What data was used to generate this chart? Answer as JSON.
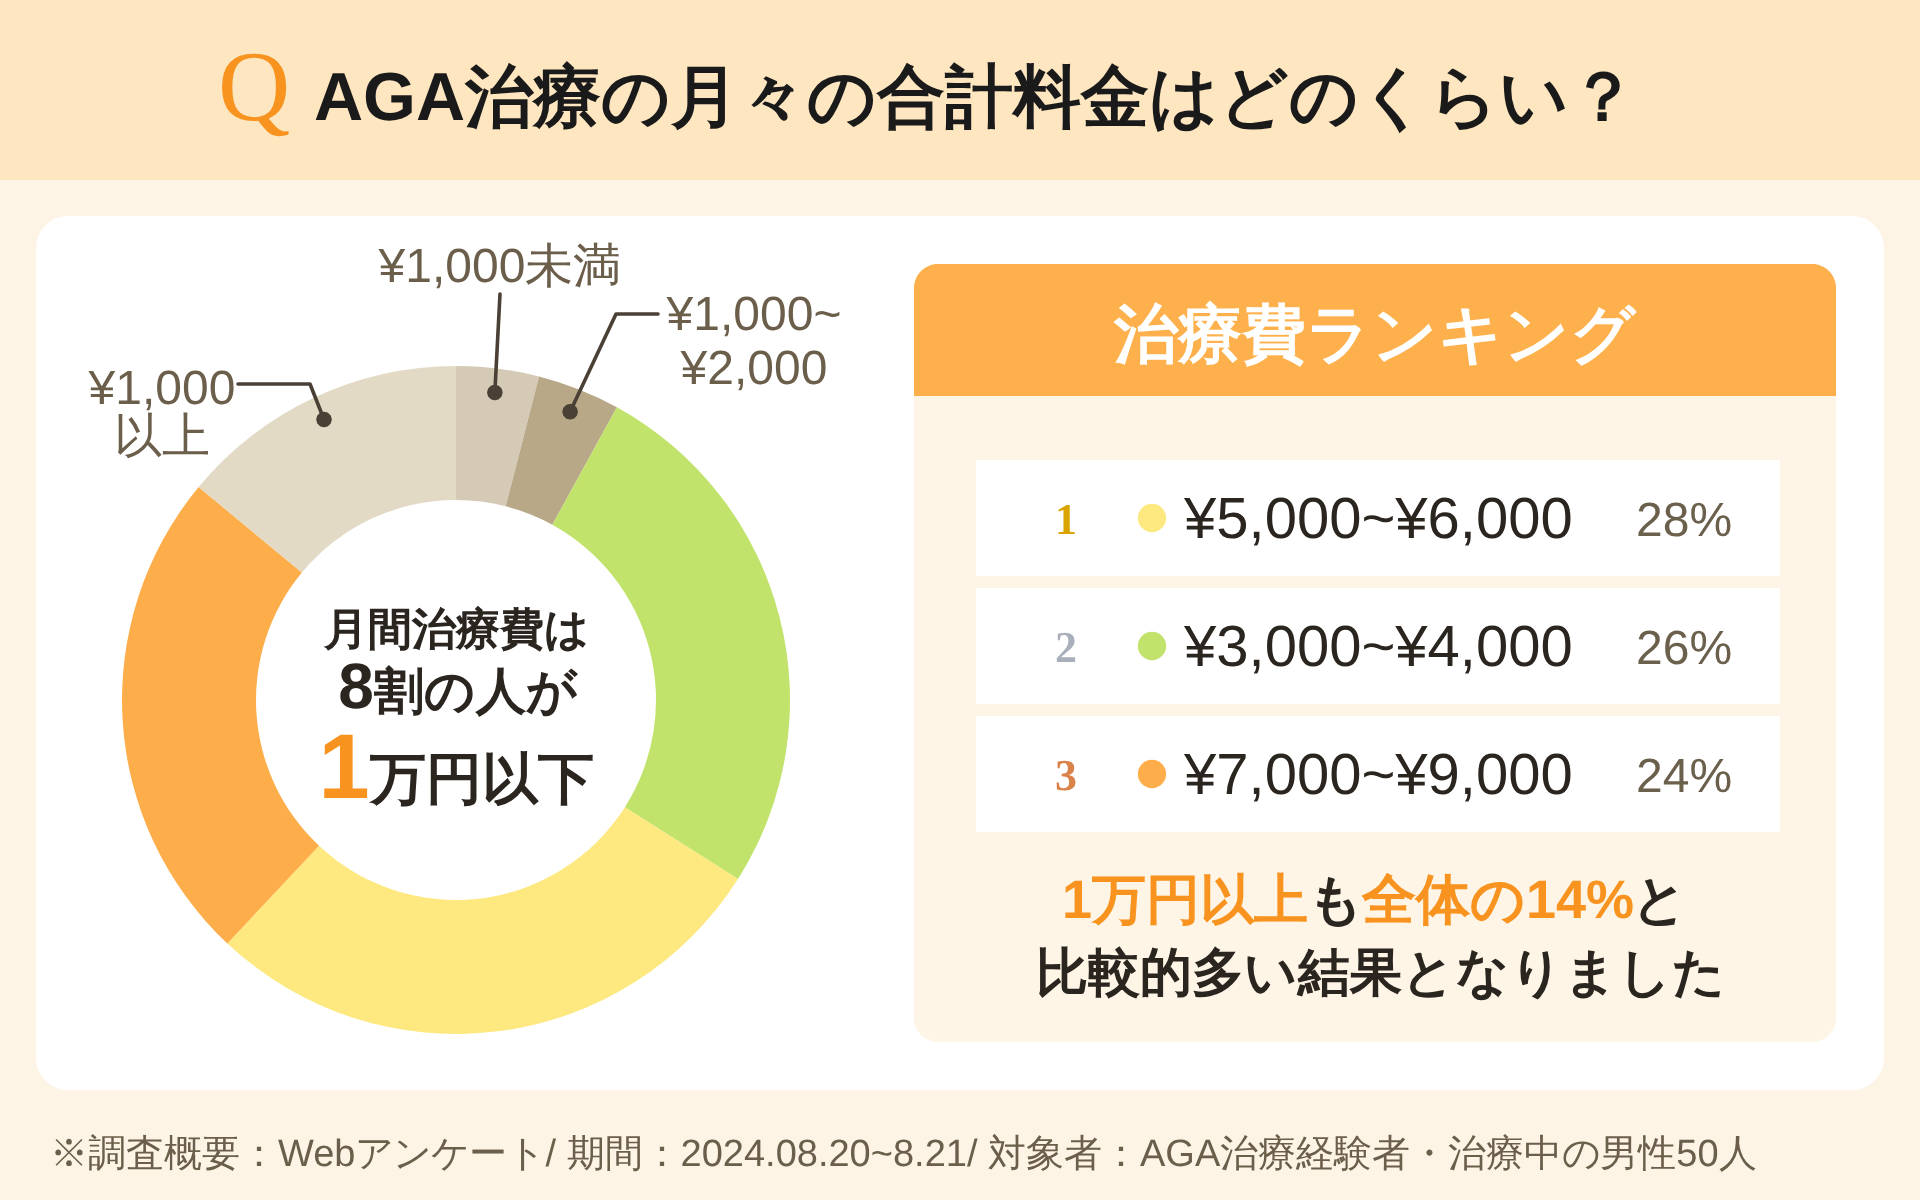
{
  "chart_data": {
    "type": "donut",
    "title": "AGA治療の月々の合計料金はどのくらい？",
    "categories": [
      "¥1,000未満",
      "¥1,000~\n¥2,000",
      "¥3,000~¥4,000",
      "¥5,000~¥6,000",
      "¥7,000~¥9,000",
      "¥1,000\n以上"
    ],
    "values": [
      4,
      4,
      26,
      28,
      24,
      14
    ],
    "colors": [
      "#d5cab5",
      "#b9a888",
      "#c1e36c",
      "#fee880",
      "#fdae4b",
      "#e3dac6"
    ],
    "value_labels": [
      null,
      null,
      "26%",
      "28%",
      "24%",
      null
    ],
    "legend": "right",
    "legend_title": "治療費ランキング",
    "annotations": [
      "Q",
      "月間治療費は",
      "8",
      "割の人が",
      "1",
      "万円以下",
      "1万円以上",
      "も",
      "全体の14%",
      "と",
      "比較的多い結果となりました",
      "※調査概要：Webアンケート/ 期間：2024.08.20~8.21/ 対象者：AGA治療経験者・治療中の男性50人",
      "1",
      "2",
      "3"
    ]
  }
}
